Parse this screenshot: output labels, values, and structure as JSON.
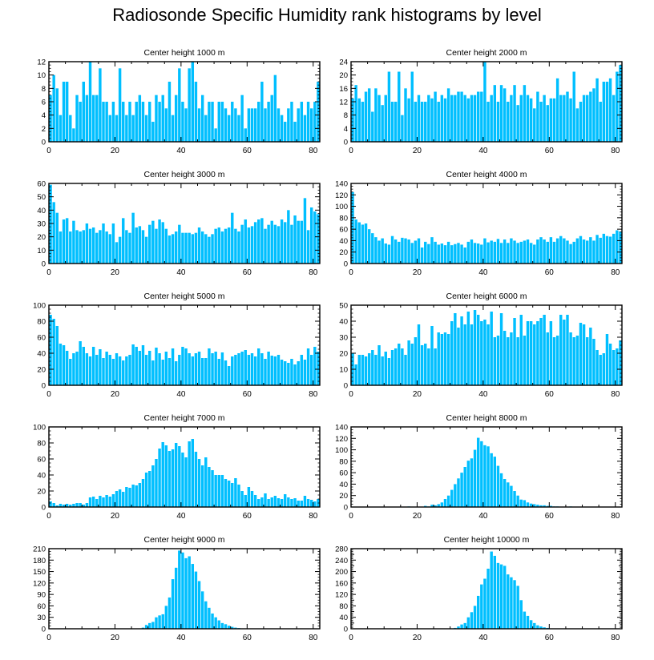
{
  "title": "Radiosonde Specific Humidity rank histograms by level",
  "bar_color": "#00bfff",
  "chart_data": [
    {
      "type": "bar",
      "title": "Center height 1000 m",
      "xlim": [
        0,
        82
      ],
      "ylim": [
        0,
        12
      ],
      "yticks": [
        0,
        2,
        4,
        6,
        8,
        10,
        12
      ],
      "xticks": [
        0,
        20,
        40,
        60,
        80
      ],
      "values": [
        7,
        10,
        8,
        4,
        9,
        9,
        4,
        2,
        7,
        6,
        9,
        7,
        12,
        7,
        7,
        11,
        6,
        6,
        4,
        6,
        4,
        11,
        6,
        4,
        6,
        4,
        6,
        7,
        6,
        4,
        6,
        3,
        7,
        6,
        7,
        5,
        9,
        4,
        7,
        11,
        6,
        5,
        11,
        12,
        9,
        5,
        7,
        4,
        6,
        6,
        2,
        6,
        6,
        5,
        4,
        6,
        5,
        4,
        7,
        2,
        5,
        5,
        5,
        6,
        9,
        5,
        6,
        7,
        10,
        5,
        4,
        3,
        5,
        6,
        3,
        5,
        6,
        4,
        6,
        5,
        6,
        9
      ]
    },
    {
      "type": "bar",
      "title": "Center height 2000 m",
      "xlim": [
        0,
        82
      ],
      "ylim": [
        0,
        24
      ],
      "yticks": [
        0,
        4,
        8,
        12,
        16,
        20,
        24
      ],
      "xticks": [
        0,
        20,
        40,
        60,
        80
      ],
      "values": [
        13,
        17,
        13,
        12,
        15,
        16,
        9,
        16,
        14,
        11,
        14,
        21,
        12,
        12,
        21,
        8,
        16,
        13,
        21,
        12,
        14,
        12,
        12,
        14,
        13,
        15,
        12,
        14,
        13,
        16,
        14,
        14,
        15,
        15,
        14,
        13,
        14,
        14,
        15,
        15,
        24,
        12,
        14,
        17,
        12,
        17,
        16,
        12,
        14,
        17,
        11,
        14,
        17,
        14,
        13,
        10,
        15,
        12,
        14,
        11,
        13,
        13,
        19,
        14,
        14,
        15,
        13,
        21,
        10,
        12,
        14,
        14,
        15,
        16,
        19,
        12,
        18,
        18,
        19,
        14,
        21,
        23
      ]
    },
    {
      "type": "bar",
      "title": "Center height 3000 m",
      "xlim": [
        0,
        82
      ],
      "ylim": [
        0,
        60
      ],
      "yticks": [
        0,
        10,
        20,
        30,
        40,
        50,
        60
      ],
      "xticks": [
        0,
        20,
        40,
        60,
        80
      ],
      "values": [
        59,
        46,
        38,
        24,
        33,
        34,
        24,
        32,
        25,
        24,
        25,
        30,
        26,
        27,
        23,
        25,
        30,
        24,
        22,
        30,
        16,
        20,
        34,
        25,
        23,
        38,
        27,
        28,
        25,
        20,
        29,
        32,
        26,
        33,
        31,
        26,
        21,
        22,
        24,
        29,
        23,
        23,
        23,
        22,
        23,
        27,
        24,
        22,
        20,
        22,
        26,
        27,
        24,
        26,
        27,
        38,
        26,
        24,
        29,
        33,
        27,
        28,
        31,
        33,
        34,
        26,
        29,
        32,
        29,
        28,
        33,
        31,
        40,
        29,
        36,
        32,
        32,
        49,
        25,
        42,
        39,
        37
      ]
    },
    {
      "type": "bar",
      "title": "Center height 4000 m",
      "xlim": [
        0,
        82
      ],
      "ylim": [
        0,
        140
      ],
      "yticks": [
        0,
        20,
        40,
        60,
        80,
        100,
        120,
        140
      ],
      "xticks": [
        0,
        20,
        40,
        60,
        80
      ],
      "values": [
        125,
        77,
        72,
        68,
        70,
        60,
        53,
        46,
        40,
        44,
        35,
        33,
        48,
        42,
        38,
        45,
        44,
        42,
        36,
        40,
        44,
        28,
        38,
        34,
        46,
        38,
        33,
        35,
        32,
        38,
        32,
        34,
        36,
        33,
        28,
        38,
        42,
        36,
        35,
        33,
        44,
        37,
        40,
        38,
        43,
        36,
        42,
        36,
        44,
        40,
        36,
        38,
        40,
        42,
        36,
        33,
        42,
        46,
        42,
        38,
        46,
        38,
        44,
        48,
        44,
        40,
        34,
        38,
        44,
        48,
        42,
        40,
        46,
        40,
        50,
        45,
        52,
        48,
        47,
        52,
        58,
        56
      ]
    },
    {
      "type": "bar",
      "title": "Center height 5000 m",
      "xlim": [
        0,
        82
      ],
      "ylim": [
        0,
        100
      ],
      "yticks": [
        0,
        20,
        40,
        60,
        80,
        100
      ],
      "xticks": [
        0,
        20,
        40,
        60,
        80
      ],
      "values": [
        88,
        83,
        74,
        52,
        50,
        43,
        33,
        40,
        42,
        55,
        48,
        40,
        36,
        48,
        38,
        45,
        34,
        42,
        38,
        33,
        40,
        36,
        31,
        36,
        38,
        51,
        48,
        43,
        50,
        38,
        43,
        31,
        47,
        40,
        32,
        42,
        34,
        46,
        30,
        38,
        48,
        46,
        40,
        36,
        40,
        42,
        34,
        34,
        46,
        40,
        42,
        33,
        41,
        31,
        24,
        36,
        38,
        40,
        42,
        44,
        38,
        40,
        36,
        46,
        40,
        33,
        42,
        37,
        36,
        38,
        32,
        30,
        28,
        33,
        26,
        30,
        38,
        32,
        46,
        38,
        48,
        42
      ]
    },
    {
      "type": "bar",
      "title": "Center height 6000 m",
      "xlim": [
        0,
        82
      ],
      "ylim": [
        0,
        50
      ],
      "yticks": [
        0,
        10,
        20,
        30,
        40,
        50
      ],
      "xticks": [
        0,
        20,
        40,
        60,
        80
      ],
      "values": [
        20,
        13,
        19,
        19,
        18,
        20,
        22,
        19,
        25,
        18,
        21,
        17,
        22,
        23,
        26,
        23,
        19,
        28,
        26,
        30,
        38,
        25,
        26,
        23,
        37,
        23,
        33,
        32,
        33,
        32,
        40,
        45,
        36,
        43,
        38,
        46,
        38,
        47,
        44,
        40,
        41,
        38,
        46,
        30,
        31,
        45,
        34,
        30,
        33,
        42,
        30,
        44,
        31,
        40,
        40,
        38,
        40,
        42,
        44,
        33,
        40,
        30,
        31,
        44,
        41,
        44,
        33,
        30,
        31,
        39,
        38,
        30,
        36,
        29,
        22,
        19,
        20,
        32,
        26,
        22,
        23,
        28
      ]
    },
    {
      "type": "bar",
      "title": "Center height 7000 m",
      "xlim": [
        0,
        82
      ],
      "ylim": [
        0,
        100
      ],
      "yticks": [
        0,
        20,
        40,
        60,
        80,
        100
      ],
      "xticks": [
        0,
        20,
        40,
        60,
        80
      ],
      "values": [
        7,
        5,
        2,
        4,
        3,
        4,
        3,
        4,
        5,
        5,
        3,
        5,
        12,
        13,
        10,
        14,
        12,
        15,
        13,
        16,
        20,
        22,
        19,
        25,
        24,
        28,
        27,
        30,
        35,
        43,
        45,
        52,
        60,
        73,
        81,
        77,
        70,
        72,
        80,
        76,
        68,
        62,
        82,
        85,
        69,
        60,
        52,
        62,
        50,
        46,
        40,
        40,
        40,
        35,
        33,
        30,
        36,
        28,
        20,
        15,
        25,
        20,
        15,
        10,
        12,
        17,
        10,
        12,
        14,
        11,
        10,
        16,
        12,
        10,
        11,
        8,
        8,
        14,
        10,
        9,
        7,
        10
      ]
    },
    {
      "type": "bar",
      "title": "Center height 8000 m",
      "xlim": [
        0,
        82
      ],
      "ylim": [
        0,
        140
      ],
      "yticks": [
        0,
        20,
        40,
        60,
        80,
        100,
        120,
        140
      ],
      "xticks": [
        0,
        20,
        40,
        60,
        80
      ],
      "values": [
        0,
        0,
        0,
        0,
        0,
        0,
        0,
        0,
        0,
        0,
        0,
        0,
        0,
        0,
        0,
        0,
        0,
        1,
        0,
        0,
        0,
        0,
        2,
        1,
        4,
        3,
        5,
        8,
        14,
        20,
        30,
        40,
        50,
        60,
        70,
        81,
        85,
        100,
        121,
        115,
        108,
        106,
        94,
        88,
        72,
        59,
        49,
        43,
        37,
        28,
        20,
        13,
        12,
        8,
        6,
        5,
        4,
        3,
        3,
        2,
        2,
        1,
        1,
        0,
        0,
        0,
        1,
        0,
        0,
        0,
        0,
        0,
        0,
        0,
        0,
        0,
        0,
        0,
        0,
        0,
        0,
        0
      ]
    },
    {
      "type": "bar",
      "title": "Center height 9000 m",
      "xlim": [
        0,
        82
      ],
      "ylim": [
        0,
        210
      ],
      "yticks": [
        0,
        30,
        60,
        90,
        120,
        150,
        180,
        210
      ],
      "xticks": [
        0,
        20,
        40,
        60,
        80
      ],
      "values": [
        0,
        0,
        0,
        0,
        0,
        0,
        0,
        0,
        0,
        0,
        0,
        0,
        0,
        0,
        0,
        0,
        0,
        0,
        0,
        0,
        0,
        0,
        0,
        0,
        0,
        0,
        0,
        0,
        3,
        10,
        15,
        18,
        30,
        35,
        38,
        60,
        82,
        130,
        160,
        205,
        200,
        185,
        190,
        170,
        150,
        125,
        98,
        72,
        55,
        40,
        30,
        22,
        15,
        12,
        8,
        5,
        3,
        2,
        1,
        1,
        0,
        0,
        0,
        0,
        0,
        0,
        0,
        0,
        0,
        0,
        0,
        0,
        0,
        0,
        0,
        0,
        0,
        0,
        0,
        0,
        0,
        0
      ]
    },
    {
      "type": "bar",
      "title": "Center height 10000 m",
      "xlim": [
        0,
        82
      ],
      "ylim": [
        0,
        280
      ],
      "yticks": [
        0,
        20,
        40,
        60,
        80,
        100,
        120,
        140,
        160,
        180,
        200,
        220,
        240,
        260,
        280
      ],
      "ytick_labels": [
        0,
        40,
        80,
        120,
        160,
        200,
        240,
        280
      ],
      "xticks": [
        0,
        20,
        40,
        60,
        80
      ],
      "values": [
        0,
        0,
        0,
        0,
        0,
        0,
        0,
        0,
        0,
        0,
        0,
        0,
        0,
        0,
        0,
        0,
        0,
        0,
        0,
        0,
        0,
        0,
        0,
        0,
        0,
        0,
        0,
        0,
        0,
        0,
        1,
        3,
        8,
        15,
        20,
        40,
        58,
        80,
        115,
        155,
        175,
        210,
        270,
        255,
        230,
        225,
        220,
        190,
        180,
        170,
        150,
        100,
        60,
        45,
        30,
        20,
        12,
        8,
        5,
        3,
        1,
        0,
        0,
        0,
        0,
        0,
        0,
        0,
        0,
        0,
        0,
        0,
        0,
        0,
        0,
        0,
        0,
        0,
        0,
        0,
        0,
        0
      ]
    }
  ]
}
